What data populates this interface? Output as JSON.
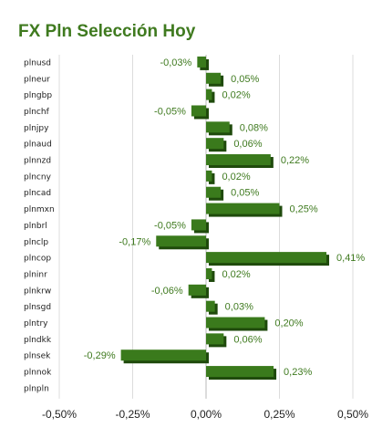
{
  "chart_data": {
    "type": "bar",
    "orientation": "horizontal",
    "title": "FX Pln Selección Hoy",
    "categories": [
      "plnusd",
      "plneur",
      "plngbp",
      "plnchf",
      "plnjpy",
      "plnaud",
      "plnnzd",
      "plncny",
      "plncad",
      "plnmxn",
      "plnbrl",
      "plnclp",
      "plncop",
      "plninr",
      "plnkrw",
      "plnsgd",
      "plntry",
      "plndkk",
      "plnsek",
      "plnnok",
      "plnpln"
    ],
    "values": [
      -0.03,
      0.05,
      0.02,
      -0.05,
      0.08,
      0.06,
      0.22,
      0.02,
      0.05,
      0.25,
      -0.05,
      -0.17,
      0.41,
      0.02,
      -0.06,
      0.03,
      0.2,
      0.06,
      -0.29,
      0.23,
      null
    ],
    "labels": [
      "-0,03%",
      "0,05%",
      "0,02%",
      "-0,05%",
      "0,08%",
      "0,06%",
      "0,22%",
      "0,02%",
      "0,05%",
      "0,25%",
      "-0,05%",
      "-0,17%",
      "0,41%",
      "0,02%",
      "-0,06%",
      "0,03%",
      "0,20%",
      "0,06%",
      "-0,29%",
      "0,23%",
      ""
    ],
    "xlim": [
      -0.5,
      0.5
    ],
    "xticks": [
      -0.5,
      -0.25,
      0,
      0.25,
      0.5
    ],
    "xtick_labels": [
      "-0,50%",
      "-0,25%",
      "0,00%",
      "0,25%",
      "0,50%"
    ],
    "grid": true,
    "bar_color": "#3a7a1c",
    "bar_dark_color": "#1f4a0c",
    "label_color": "#3f7a1f",
    "title_color": "#3f7a1f"
  }
}
